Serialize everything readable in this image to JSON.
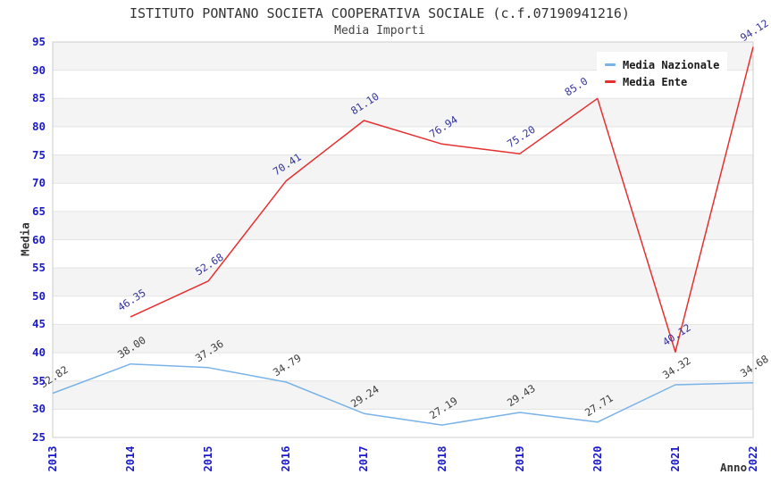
{
  "header": {
    "title": "ISTITUTO PONTANO SOCIETA COOPERATIVA SOCIALE (c.f.07190941216)",
    "subtitle": "Media Importi"
  },
  "colors": {
    "nazionale_line": "#7ab3e8",
    "ente_line": "#e63030",
    "axis_tick_text": "#1a1acc",
    "nazionale_label_text": "#3d3d3d",
    "ente_label_text": "#34349e",
    "band_fill": "#f4f4f4",
    "gridline": "#e3e3e3",
    "plot_border": "#cccccc",
    "title_text": "#333333"
  },
  "chart_data": {
    "type": "line",
    "title": "ISTITUTO PONTANO SOCIETA COOPERATIVA SOCIALE (c.f.07190941216)",
    "subtitle": "Media Importi",
    "xlabel": "Anno",
    "ylabel": "Media",
    "x": [
      2013,
      2014,
      2015,
      2016,
      2017,
      2018,
      2019,
      2020,
      2021,
      2022
    ],
    "ylim": [
      25,
      95
    ],
    "ytick_step": 5,
    "grid": true,
    "banded_background": true,
    "legend_position": "top-right-inside",
    "series": [
      {
        "name": "Media Nazionale",
        "color": "#7ab3e8",
        "label_color": "#3d3d3d",
        "values": [
          32.82,
          38.0,
          37.36,
          34.79,
          29.24,
          27.19,
          29.43,
          27.71,
          34.32,
          34.68
        ],
        "labels": [
          "32.82",
          "38.00",
          "37.36",
          "34.79",
          "29.24",
          "27.19",
          "29.43",
          "27.71",
          "34.32",
          "34.68"
        ]
      },
      {
        "name": "Media Ente",
        "color": "#e63030",
        "label_color": "#34349e",
        "values": [
          null,
          46.35,
          52.68,
          70.41,
          81.1,
          76.94,
          75.2,
          85.0,
          40.12,
          94.12
        ],
        "labels": [
          "",
          "46.35",
          "52.68",
          "70.41",
          "81.10",
          "76.94",
          "75.20",
          "85.0",
          "40.12",
          "94.12"
        ]
      }
    ]
  }
}
